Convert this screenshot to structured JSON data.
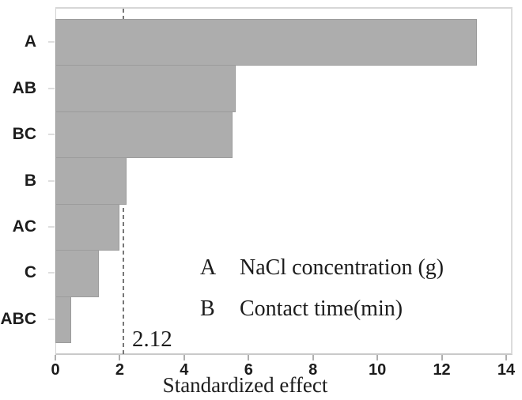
{
  "chart_data": {
    "type": "bar",
    "orientation": "horizontal",
    "title": "",
    "categories": [
      "A",
      "AB",
      "BC",
      "B",
      "AC",
      "C",
      "ABC"
    ],
    "values": [
      13.1,
      5.6,
      5.5,
      2.2,
      2.0,
      1.35,
      0.5
    ],
    "xlabel": "Standardized effect",
    "ylabel": "",
    "xlim": [
      0,
      14
    ],
    "xticks": [
      0,
      2,
      4,
      6,
      8,
      10,
      12,
      14
    ],
    "grid": false,
    "reference_line": {
      "value": 2.12,
      "label": "2.12"
    },
    "legend_position": "inside lower right",
    "legend": {
      "entries": [
        {
          "key": "A",
          "label": "NaCl concentration (g)"
        },
        {
          "key": "B",
          "label": "Contact time(min)"
        }
      ]
    },
    "colors": {
      "bar_fill": "#adadad",
      "bar_border": "#9c9c9c",
      "reference_line": "#777777",
      "axis": "#cccccc",
      "text": "#1c1c1c"
    }
  }
}
